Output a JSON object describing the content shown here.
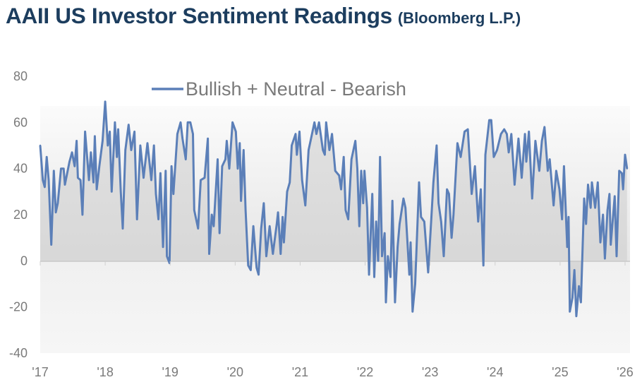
{
  "title": "AAII US Investor Sentiment Readings",
  "subtitle": "(Bloomberg L.P.)",
  "chart_data": {
    "type": "area",
    "title": "AAII US Investor Sentiment Readings",
    "subtitle": "(Bloomberg L.P.)",
    "xlabel": "",
    "ylabel": "",
    "ylim": [
      -40,
      80
    ],
    "xlim": [
      2017,
      2026
    ],
    "yticks": [
      80,
      60,
      40,
      20,
      0,
      -20,
      -40
    ],
    "xticks": [
      {
        "value": 2017,
        "label": "'17"
      },
      {
        "value": 2018,
        "label": "'18"
      },
      {
        "value": 2019,
        "label": "'19"
      },
      {
        "value": 2020,
        "label": "'20"
      },
      {
        "value": 2021,
        "label": "'21"
      },
      {
        "value": 2022,
        "label": "'22"
      },
      {
        "value": 2023,
        "label": "'23"
      },
      {
        "value": 2024,
        "label": "'24"
      },
      {
        "value": 2025,
        "label": "'25"
      },
      {
        "value": 2026,
        "label": "'26"
      }
    ],
    "grid": false,
    "legend": {
      "position": "top-center",
      "entries": [
        "Bullish + Neutral - Bearish"
      ]
    },
    "series": [
      {
        "name": "Bullish + Neutral - Bearish",
        "color": "#5b7fb8",
        "fill": "#d9d9d9",
        "x": [
          2017.0,
          2017.04,
          2017.07,
          2017.1,
          2017.13,
          2017.17,
          2017.21,
          2017.24,
          2017.27,
          2017.32,
          2017.36,
          2017.38,
          2017.45,
          2017.49,
          2017.53,
          2017.56,
          2017.58,
          2017.62,
          2017.65,
          2017.69,
          2017.75,
          2017.78,
          2017.82,
          2017.84,
          2017.87,
          2017.91,
          2017.96,
          2018.0,
          2018.04,
          2018.07,
          2018.1,
          2018.15,
          2018.18,
          2018.2,
          2018.24,
          2018.27,
          2018.31,
          2018.36,
          2018.4,
          2018.45,
          2018.49,
          2018.54,
          2018.59,
          2018.65,
          2018.71,
          2018.75,
          2018.78,
          2018.82,
          2018.85,
          2018.89,
          2018.93,
          2018.95,
          2018.99,
          2019.02,
          2019.05,
          2019.11,
          2019.16,
          2019.19,
          2019.24,
          2019.27,
          2019.31,
          2019.35,
          2019.37,
          2019.43,
          2019.47,
          2019.53,
          2019.58,
          2019.6,
          2019.64,
          2019.67,
          2019.73,
          2019.76,
          2019.8,
          2019.85,
          2019.87,
          2019.91,
          2019.96,
          2020.01,
          2020.04,
          2020.07,
          2020.09,
          2020.13,
          2020.16,
          2020.2,
          2020.24,
          2020.28,
          2020.33,
          2020.36,
          2020.4,
          2020.44,
          2020.48,
          2020.53,
          2020.58,
          2020.64,
          2020.66,
          2020.7,
          2020.73,
          2020.75,
          2020.8,
          2020.84,
          2020.87,
          2020.93,
          2020.95,
          2020.99,
          2021.03,
          2021.08,
          2021.13,
          2021.16,
          2021.22,
          2021.25,
          2021.29,
          2021.35,
          2021.38,
          2021.4,
          2021.45,
          2021.49,
          2021.54,
          2021.6,
          2021.63,
          2021.67,
          2021.7,
          2021.74,
          2021.79,
          2021.85,
          2021.88,
          2021.91,
          2021.94,
          2021.97,
          2021.99,
          2022.03,
          2022.06,
          2022.11,
          2022.14,
          2022.17,
          2022.2,
          2022.23,
          2022.26,
          2022.3,
          2022.32,
          2022.35,
          2022.39,
          2022.42,
          2022.46,
          2022.5,
          2022.53,
          2022.59,
          2022.62,
          2022.68,
          2022.7,
          2022.73,
          2022.77,
          2022.83,
          2022.86,
          2022.91,
          2022.97,
          2023.02,
          2023.05,
          2023.1,
          2023.13,
          2023.17,
          2023.21,
          2023.26,
          2023.29,
          2023.33,
          2023.36,
          2023.42,
          2023.47,
          2023.53,
          2023.58,
          2023.64,
          2023.69,
          2023.74,
          2023.78,
          2023.82,
          2023.85,
          2023.91,
          2023.94,
          2023.98,
          2024.03,
          2024.09,
          2024.14,
          2024.18,
          2024.21,
          2024.25,
          2024.3,
          2024.36,
          2024.41,
          2024.46,
          2024.48,
          2024.52,
          2024.57,
          2024.62,
          2024.68,
          2024.72,
          2024.76,
          2024.81,
          2024.84,
          2024.9,
          2024.94,
          2024.99,
          2025.03,
          2025.06,
          2025.11,
          2025.13,
          2025.15,
          2025.19,
          2025.22,
          2025.25,
          2025.29,
          2025.32,
          2025.37,
          2025.4,
          2025.43,
          2025.47,
          2025.49,
          2025.54,
          2025.58,
          2025.62,
          2025.66,
          2025.69,
          2025.73,
          2025.76,
          2025.78,
          2025.84,
          2025.87,
          2025.91,
          2025.95,
          2025.97,
          2026.0,
          2026.03
        ],
        "y": [
          50,
          35,
          32,
          45,
          35,
          7,
          39,
          21,
          25,
          40,
          40,
          33,
          43,
          47,
          41,
          52,
          36,
          35,
          20,
          56,
          35,
          47,
          34,
          54,
          31,
          41,
          52,
          69,
          50,
          56,
          30,
          60,
          45,
          57,
          30,
          14,
          48,
          59,
          48,
          56,
          18,
          50,
          36,
          51,
          35,
          50,
          29,
          18,
          38,
          6,
          39,
          2,
          -1,
          41,
          29,
          55,
          60,
          53,
          44,
          60,
          60,
          55,
          22,
          14,
          35,
          36,
          53,
          3,
          20,
          15,
          44,
          12,
          41,
          44,
          52,
          40,
          60,
          56,
          40,
          51,
          26,
          48,
          22,
          -2,
          -4,
          15,
          -3,
          -6,
          14,
          25,
          2,
          15,
          3,
          16,
          21,
          3,
          19,
          8,
          30,
          34,
          50,
          55,
          46,
          56,
          35,
          24,
          48,
          52,
          60,
          55,
          60,
          48,
          46,
          60,
          48,
          55,
          39,
          37,
          31,
          45,
          22,
          18,
          44,
          52,
          40,
          15,
          39,
          25,
          39,
          23,
          -6,
          29,
          -7,
          17,
          0,
          45,
          2,
          12,
          -18,
          2,
          -7,
          26,
          -18,
          6,
          16,
          27,
          23,
          -6,
          8,
          -22,
          -10,
          34,
          19,
          17,
          -5,
          19,
          34,
          50,
          25,
          17,
          2,
          31,
          29,
          10,
          20,
          51,
          45,
          56,
          57,
          29,
          41,
          17,
          31,
          -2,
          46,
          61,
          61,
          45,
          48,
          55,
          57,
          55,
          47,
          55,
          33,
          53,
          36,
          55,
          43,
          56,
          27,
          52,
          39,
          52,
          58,
          39,
          44,
          24,
          39,
          31,
          18,
          41,
          6,
          19,
          -22,
          -16,
          -4,
          -24,
          -11,
          -18,
          27,
          16,
          33,
          23,
          34,
          23,
          34,
          8,
          20,
          1,
          22,
          29,
          7,
          28,
          2,
          39,
          38,
          31,
          46,
          40
        ]
      }
    ]
  }
}
